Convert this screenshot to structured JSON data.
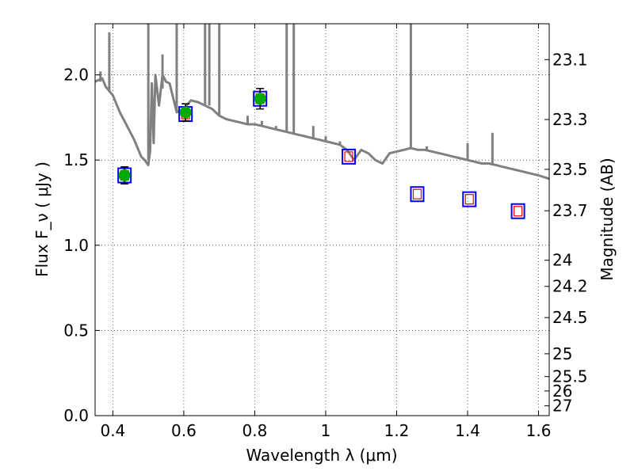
{
  "chart_data": {
    "type": "scatter",
    "xlabel": "Wavelength  λ (μm)",
    "ylabel": "Flux  F_ν  ( μJy )",
    "y2label": "Magnitude (AB)",
    "xlim": [
      0.35,
      1.63
    ],
    "ylim": [
      0.0,
      2.3
    ],
    "grid": true,
    "x_ticks": [
      {
        "value": 0.4,
        "label": "0.4"
      },
      {
        "value": 0.6,
        "label": "0.6"
      },
      {
        "value": 0.8,
        "label": "0.8"
      },
      {
        "value": 1.0,
        "label": "1"
      },
      {
        "value": 1.2,
        "label": "1.2"
      },
      {
        "value": 1.4,
        "label": "1.4"
      },
      {
        "value": 1.6,
        "label": "1.6"
      }
    ],
    "y_ticks": [
      {
        "value": 0.0,
        "label": "0.0"
      },
      {
        "value": 0.5,
        "label": "0.5"
      },
      {
        "value": 1.0,
        "label": "1.0"
      },
      {
        "value": 1.5,
        "label": "1.5"
      },
      {
        "value": 2.0,
        "label": "2.0"
      }
    ],
    "y2_ticks": [
      {
        "value": 23.1,
        "label": "23.1"
      },
      {
        "value": 23.3,
        "label": "23.3"
      },
      {
        "value": 23.5,
        "label": "23.5"
      },
      {
        "value": 23.7,
        "label": "23.7"
      },
      {
        "value": 24.0,
        "label": "24"
      },
      {
        "value": 24.2,
        "label": "24.2"
      },
      {
        "value": 24.5,
        "label": "24.5"
      },
      {
        "value": 25.0,
        "label": "25"
      },
      {
        "value": 25.5,
        "label": "25.5"
      },
      {
        "value": 26.0,
        "label": "26"
      },
      {
        "value": 27.0,
        "label": "27"
      }
    ],
    "series": [
      {
        "kind": "line",
        "color": "#808080",
        "x": [
          0.35,
          0.37,
          0.38,
          0.4,
          0.42,
          0.44,
          0.46,
          0.48,
          0.49,
          0.5,
          0.505,
          0.51,
          0.515,
          0.52,
          0.53,
          0.54,
          0.55,
          0.56,
          0.58,
          0.6,
          0.62,
          0.64,
          0.66,
          0.68,
          0.7,
          0.72,
          0.74,
          0.76,
          0.78,
          0.8,
          0.82,
          0.84,
          0.86,
          0.88,
          0.9,
          0.92,
          0.94,
          0.96,
          0.98,
          1.0,
          1.02,
          1.04,
          1.06,
          1.08,
          1.1,
          1.12,
          1.14,
          1.16,
          1.18,
          1.2,
          1.22,
          1.24,
          1.26,
          1.28,
          1.3,
          1.32,
          1.34,
          1.36,
          1.38,
          1.4,
          1.42,
          1.44,
          1.46,
          1.48,
          1.5,
          1.52,
          1.54,
          1.56,
          1.58,
          1.6,
          1.63
        ],
        "y": [
          1.96,
          1.98,
          1.93,
          1.88,
          1.78,
          1.7,
          1.62,
          1.52,
          1.5,
          1.47,
          1.55,
          1.95,
          1.6,
          2.0,
          1.82,
          2.0,
          1.96,
          1.95,
          1.78,
          1.8,
          1.85,
          1.84,
          1.82,
          1.8,
          1.76,
          1.74,
          1.73,
          1.72,
          1.71,
          1.71,
          1.7,
          1.69,
          1.68,
          1.67,
          1.66,
          1.65,
          1.64,
          1.63,
          1.62,
          1.61,
          1.6,
          1.59,
          1.56,
          1.5,
          1.56,
          1.54,
          1.5,
          1.48,
          1.54,
          1.55,
          1.56,
          1.57,
          1.56,
          1.56,
          1.55,
          1.54,
          1.53,
          1.52,
          1.51,
          1.5,
          1.49,
          1.48,
          1.48,
          1.47,
          1.46,
          1.45,
          1.44,
          1.43,
          1.42,
          1.41,
          1.39
        ]
      },
      {
        "kind": "spikes",
        "color": "#808080",
        "points": [
          {
            "x": 0.365,
            "y0": 1.96,
            "y1": 2.02
          },
          {
            "x": 0.39,
            "y0": 1.9,
            "y1": 2.25
          },
          {
            "x": 0.5,
            "y0": 1.5,
            "y1": 2.3
          },
          {
            "x": 0.54,
            "y0": 1.92,
            "y1": 2.12
          },
          {
            "x": 0.58,
            "y0": 1.78,
            "y1": 2.3
          },
          {
            "x": 0.66,
            "y0": 1.82,
            "y1": 2.3
          },
          {
            "x": 0.672,
            "y0": 1.82,
            "y1": 2.3
          },
          {
            "x": 0.7,
            "y0": 1.76,
            "y1": 2.3
          },
          {
            "x": 0.78,
            "y0": 1.71,
            "y1": 1.76
          },
          {
            "x": 0.82,
            "y0": 1.7,
            "y1": 1.73
          },
          {
            "x": 0.86,
            "y0": 1.68,
            "y1": 1.7
          },
          {
            "x": 0.89,
            "y0": 1.67,
            "y1": 2.3
          },
          {
            "x": 0.91,
            "y0": 1.66,
            "y1": 2.3
          },
          {
            "x": 0.965,
            "y0": 1.63,
            "y1": 1.7
          },
          {
            "x": 1.0,
            "y0": 1.61,
            "y1": 1.64
          },
          {
            "x": 1.04,
            "y0": 1.59,
            "y1": 1.61
          },
          {
            "x": 1.24,
            "y0": 1.57,
            "y1": 2.3
          },
          {
            "x": 1.285,
            "y0": 1.56,
            "y1": 1.58
          },
          {
            "x": 1.4,
            "y0": 1.5,
            "y1": 1.6
          },
          {
            "x": 1.47,
            "y0": 1.48,
            "y1": 1.66
          }
        ]
      },
      {
        "kind": "model-box",
        "color": "#0000ff",
        "inner_color": "#ff0000",
        "x": [
          0.433,
          0.605,
          0.815,
          1.065,
          1.258,
          1.405,
          1.542
        ],
        "y": [
          1.41,
          1.77,
          1.86,
          1.52,
          1.3,
          1.27,
          1.2
        ]
      },
      {
        "kind": "observed",
        "color": "#00aa00",
        "x": [
          0.433,
          0.605,
          0.815
        ],
        "y": [
          1.41,
          1.78,
          1.86
        ],
        "yerr": [
          0.05,
          0.05,
          0.06
        ]
      }
    ]
  }
}
